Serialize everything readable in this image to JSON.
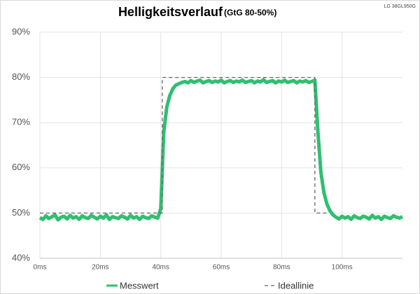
{
  "chart_data": {
    "type": "line",
    "title": "Helligkeitsverlauf",
    "subtitle": "(GtG 80-50%)",
    "annotation": "LG 38GL950G",
    "xlim": [
      0,
      120
    ],
    "ylim": [
      40,
      90
    ],
    "xticks": [
      {
        "value": 0,
        "label": "0ms"
      },
      {
        "value": 20,
        "label": "20ms"
      },
      {
        "value": 40,
        "label": "40ms"
      },
      {
        "value": 60,
        "label": "60ms"
      },
      {
        "value": 80,
        "label": "80ms"
      },
      {
        "value": 100,
        "label": "100ms"
      }
    ],
    "yticks": [
      {
        "value": 40,
        "label": "40%"
      },
      {
        "value": 50,
        "label": "50%"
      },
      {
        "value": 60,
        "label": "60%"
      },
      {
        "value": 70,
        "label": "70%"
      },
      {
        "value": 80,
        "label": "80%"
      },
      {
        "value": 90,
        "label": "90%"
      }
    ],
    "grid": true,
    "series": [
      {
        "name": "Messwert",
        "color": "#2fbf71",
        "dashed": false,
        "x": [
          0,
          1,
          2,
          3,
          4,
          5,
          6,
          7,
          8,
          9,
          10,
          11,
          12,
          13,
          14,
          15,
          16,
          17,
          18,
          19,
          20,
          21,
          22,
          23,
          24,
          25,
          26,
          27,
          28,
          29,
          30,
          31,
          32,
          33,
          34,
          35,
          36,
          37,
          38,
          39,
          40,
          41,
          42,
          43,
          44,
          45,
          46,
          47,
          48,
          49,
          50,
          51,
          52,
          53,
          54,
          55,
          56,
          57,
          58,
          59,
          60,
          61,
          62,
          63,
          64,
          65,
          66,
          67,
          68,
          69,
          70,
          71,
          72,
          73,
          74,
          75,
          76,
          77,
          78,
          79,
          80,
          81,
          82,
          83,
          84,
          85,
          86,
          87,
          88,
          89,
          90,
          91,
          92,
          93,
          94,
          95,
          96,
          97,
          98,
          99,
          100,
          101,
          102,
          103,
          104,
          105,
          106,
          107,
          108,
          109,
          110,
          111,
          112,
          113,
          114,
          115,
          116,
          117,
          118,
          119,
          120
        ],
        "values": [
          49,
          48.6,
          49.4,
          48.8,
          49.2,
          49.6,
          48.5,
          49.1,
          49.3,
          48.7,
          49.5,
          48.9,
          49.2,
          48.6,
          49.4,
          49,
          48.8,
          49.5,
          49.1,
          48.7,
          49.3,
          48.9,
          49.6,
          48.6,
          49.2,
          49,
          48.8,
          49.4,
          49.1,
          48.7,
          49.5,
          48.9,
          49.2,
          48.6,
          49.3,
          49,
          48.8,
          49.4,
          49.1,
          48.9,
          51,
          68,
          73.5,
          76,
          77.5,
          78.3,
          78.6,
          78.9,
          79.1,
          78.8,
          79.3,
          78.9,
          79.2,
          79.4,
          78.8,
          79.1,
          79.3,
          78.9,
          79.2,
          79,
          79.4,
          78.8,
          79.1,
          79.3,
          78.9,
          79.2,
          79,
          79.4,
          78.9,
          79.1,
          79.3,
          78.8,
          79.2,
          79,
          79.5,
          78.9,
          79.1,
          79.3,
          78.8,
          79.2,
          79,
          79.4,
          78.9,
          79.1,
          79.3,
          78.8,
          79.2,
          79,
          79.3,
          78.9,
          79.1,
          79.4,
          68,
          59,
          54.5,
          52,
          50.5,
          49.6,
          49.1,
          48.7,
          49.3,
          48.9,
          49.2,
          48.6,
          49.4,
          49,
          48.8,
          49.3,
          49.1,
          48.7,
          49.5,
          48.9,
          49.2,
          48.6,
          49.3,
          49,
          48.8,
          49.4,
          49.1,
          48.9,
          49.2
        ]
      },
      {
        "name": "Ideallinie",
        "color": "#666666",
        "dashed": true,
        "x": [
          0,
          40.5,
          40.5,
          91,
          91,
          95
        ],
        "values": [
          50,
          50,
          80,
          80,
          50,
          50
        ]
      }
    ]
  }
}
